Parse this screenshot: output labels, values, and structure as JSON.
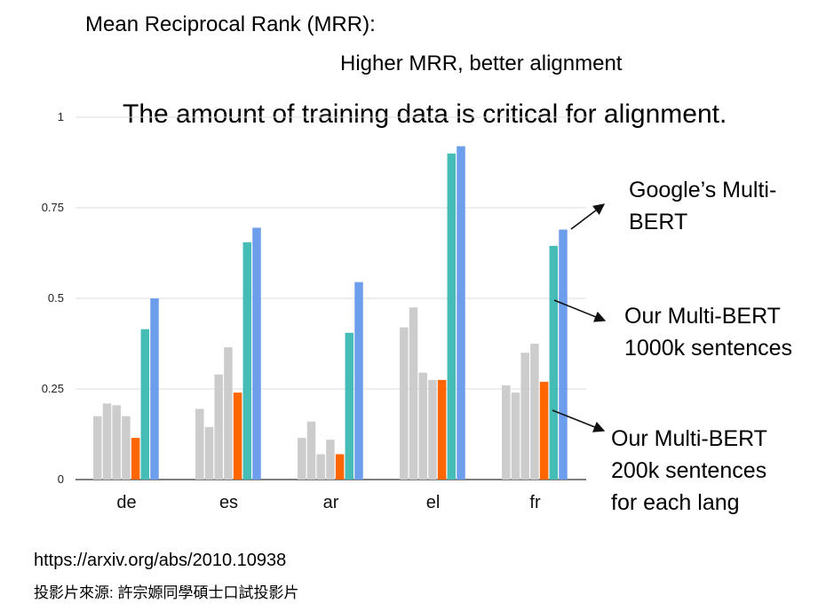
{
  "header": {
    "title": "Mean Reciprocal Rank (MRR):",
    "subtitle": "Higher MRR, better alignment",
    "headline": "The amount of training data is critical for alignment."
  },
  "annotations": {
    "google_line1": "Google’s Multi-",
    "google_line2": "BERT",
    "our1000_line1": "Our Multi-BERT",
    "our1000_line2": "1000k sentences",
    "our200_line1": "Our Multi-BERT",
    "our200_line2": "200k sentences",
    "our200_line3": "for each lang"
  },
  "footer": {
    "url": "https://arxiv.org/abs/2010.10938",
    "source": "投影片來源: 許宗嫄同學碩士口試投影片"
  },
  "colors": {
    "gray": "#cccccc",
    "orange": "#ff6600",
    "teal": "#45bcb6",
    "blue": "#6d9eeb",
    "gridline": "#dddddd",
    "arrow": "#111111"
  },
  "chart_data": {
    "type": "bar",
    "categories": [
      "de",
      "es",
      "ar",
      "el",
      "fr"
    ],
    "ylim": [
      0,
      1
    ],
    "yticks": [
      "0",
      "0.25",
      "0.5",
      "0.75",
      "1"
    ],
    "ytick_values": [
      0,
      0.25,
      0.5,
      0.75,
      1
    ],
    "series": [
      {
        "color": "gray",
        "values": [
          0.175,
          0.195,
          0.115,
          0.42,
          0.26
        ]
      },
      {
        "color": "gray",
        "values": [
          0.21,
          0.145,
          0.16,
          0.475,
          0.24
        ]
      },
      {
        "color": "gray",
        "values": [
          0.205,
          0.29,
          0.07,
          0.295,
          0.35
        ]
      },
      {
        "color": "gray",
        "values": [
          0.175,
          0.365,
          0.11,
          0.275,
          0.375
        ]
      },
      {
        "name": "Our Multi-BERT 200k sentences for each lang",
        "color": "orange",
        "values": [
          0.115,
          0.24,
          0.07,
          0.275,
          0.27
        ]
      },
      {
        "name": "Our Multi-BERT 1000k sentences",
        "color": "teal",
        "values": [
          0.415,
          0.655,
          0.405,
          0.9,
          0.645
        ]
      },
      {
        "name": "Google’s Multi-BERT",
        "color": "blue",
        "values": [
          0.5,
          0.695,
          0.545,
          0.92,
          0.69
        ]
      }
    ]
  }
}
